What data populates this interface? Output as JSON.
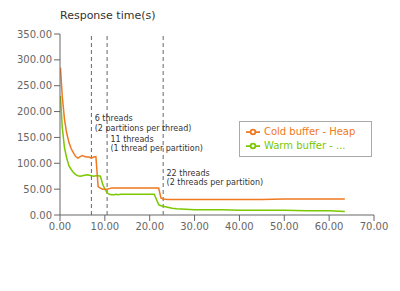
{
  "chart_data": {
    "type": "line",
    "ylabel": "Response time(s)",
    "xlim": [
      0,
      70
    ],
    "ylim": [
      0,
      350
    ],
    "xticks": [
      {
        "value": 0,
        "label": "0.00"
      },
      {
        "value": 10,
        "label": "10.00"
      },
      {
        "value": 20,
        "label": "20.00"
      },
      {
        "value": 30,
        "label": "30.00"
      },
      {
        "value": 40,
        "label": "40.00"
      },
      {
        "value": 50,
        "label": "50.00"
      },
      {
        "value": 60,
        "label": "60.00"
      },
      {
        "value": 70,
        "label": "70.00"
      }
    ],
    "yticks": [
      {
        "value": 0,
        "label": "0.00"
      },
      {
        "value": 50,
        "label": "50.00"
      },
      {
        "value": 100,
        "label": "100.00"
      },
      {
        "value": 150,
        "label": "150.00"
      },
      {
        "value": 200,
        "label": "200.00"
      },
      {
        "value": 250,
        "label": "250.00"
      },
      {
        "value": 300,
        "label": "300.00"
      },
      {
        "value": 350,
        "label": "350.00"
      }
    ],
    "grid": false,
    "legend": "right",
    "vlines": [
      7.0,
      10.5,
      23.0
    ],
    "annotations": [
      {
        "x": 7.3,
        "y": 195,
        "text": "6 threads\n(2 partitions per thread)"
      },
      {
        "x": 10.8,
        "y": 155,
        "text": "11 threads\n(1 thread per partition)"
      },
      {
        "x": 23.3,
        "y": 90,
        "text": "22 threads\n(2 threads per partition)"
      }
    ],
    "series": [
      {
        "name": "Warm buffer - ...",
        "color": "#7bc800",
        "x": [
          0.1,
          0.5,
          1.0,
          1.5,
          2.0,
          2.5,
          3.0,
          3.5,
          4.0,
          4.5,
          5.0,
          5.5,
          6.0,
          6.5,
          7.0,
          7.5,
          8.0,
          8.5,
          9.0,
          9.5,
          10.0,
          10.5,
          11.0,
          11.5,
          12.0,
          12.5,
          13.0,
          13.5,
          14.0,
          15.0,
          16.0,
          17.0,
          18.0,
          19.0,
          20.0,
          21.0,
          22.0,
          22.5,
          23.0,
          24.0,
          25.0,
          26.0,
          28.0,
          30.0,
          33.0,
          36.0,
          40.0,
          45.0,
          50.0,
          55.0,
          60.0,
          63.5
        ],
        "values": [
          230,
          170,
          130,
          110,
          95,
          88,
          82,
          78,
          76,
          75,
          76,
          77,
          78,
          77,
          76,
          75,
          76,
          76,
          75,
          60,
          50,
          43,
          40,
          39,
          39,
          40,
          39,
          40,
          40,
          40,
          40,
          40,
          40,
          40,
          40,
          40,
          20,
          18,
          17,
          15,
          13,
          12,
          11,
          10,
          10,
          10,
          9,
          9,
          9,
          8,
          8,
          7
        ]
      },
      {
        "name": "Cold buffer - Heap",
        "color": "#f07820",
        "x": [
          0.1,
          0.5,
          1.0,
          1.5,
          2.0,
          2.5,
          3.0,
          3.5,
          4.0,
          4.5,
          5.0,
          5.5,
          6.0,
          6.5,
          7.0,
          7.5,
          8.0,
          8.5,
          9.0,
          9.5,
          10.0,
          10.5,
          11.0,
          11.5,
          12.0,
          12.5,
          13.0,
          14.0,
          15.0,
          16.0,
          17.0,
          18.0,
          19.0,
          20.0,
          21.0,
          22.0,
          22.5,
          23.0,
          24.0,
          25.0,
          26.0,
          28.0,
          30.0,
          33.0,
          36.0,
          40.0,
          45.0,
          50.0,
          55.0,
          60.0,
          63.5
        ],
        "values": [
          285,
          230,
          185,
          158,
          140,
          128,
          120,
          113,
          110,
          113,
          115,
          113,
          112,
          112,
          110,
          112,
          113,
          55,
          52,
          50,
          50,
          50,
          51,
          52,
          52,
          52,
          52,
          52,
          52,
          52,
          52,
          52,
          52,
          52,
          52,
          52,
          33,
          31,
          30,
          30,
          30,
          30,
          30,
          30,
          30,
          30,
          30,
          31,
          31,
          31,
          31
        ]
      }
    ]
  }
}
